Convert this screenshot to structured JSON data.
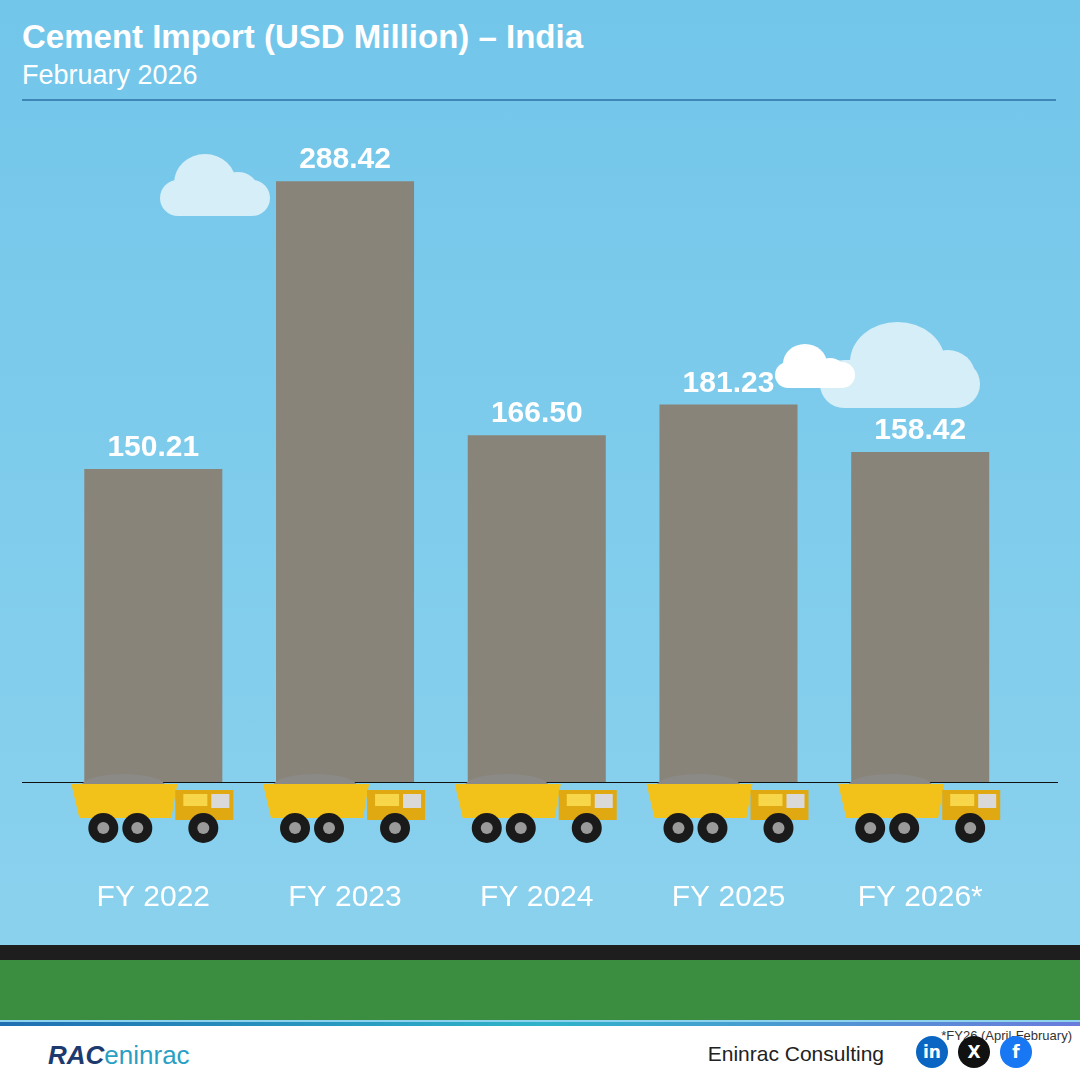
{
  "chart_data": {
    "type": "bar",
    "title": "Cement Import (USD Million) – India",
    "subtitle": "February 2026",
    "categories": [
      "FY 2022",
      "FY 2023",
      "FY 2024",
      "FY 2025",
      "FY 2026*"
    ],
    "values": [
      150.21,
      288.42,
      166.5,
      181.23,
      158.42
    ],
    "value_labels": [
      "150.21",
      "288.42",
      "166.50",
      "181.23",
      "158.42"
    ],
    "color": "#898479",
    "ylim": [
      0,
      300
    ],
    "grid": false,
    "data_labels": true,
    "tick_labels": "x",
    "annotations": [
      "*FY26 (April-February)"
    ]
  },
  "footer": {
    "logo": [
      "RAC",
      "eninrac"
    ],
    "brand": "Eninrac Consulting",
    "social": [
      "in",
      "X",
      "f"
    ]
  }
}
